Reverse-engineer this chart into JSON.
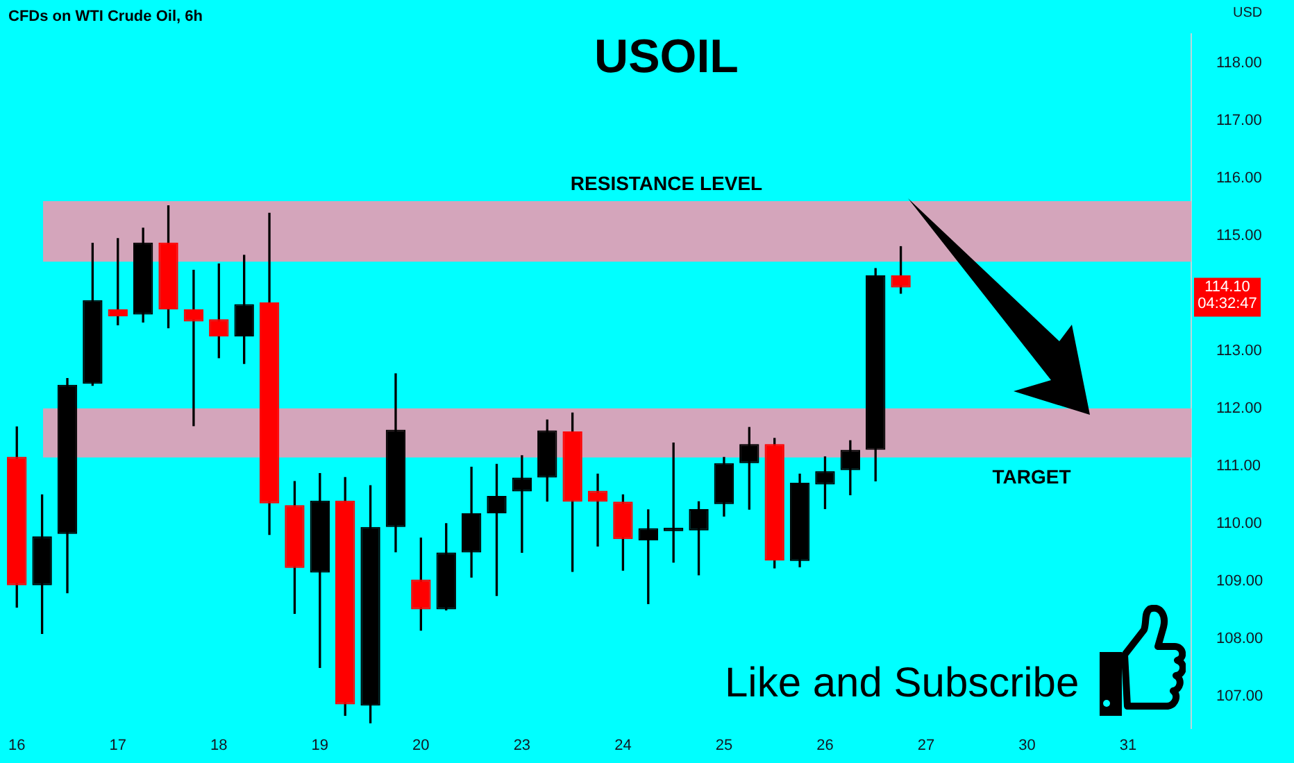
{
  "chart_data": {
    "type": "candlestick",
    "title": "USOIL",
    "subtitle": "CFDs on WTI Crude Oil, 6h",
    "ylabel": "USD",
    "categories": [
      "16",
      null,
      null,
      null,
      "17",
      null,
      null,
      null,
      "18",
      null,
      null,
      null,
      "19",
      null,
      null,
      null,
      "20",
      null,
      null,
      null,
      "23",
      null,
      null,
      null,
      "24",
      null,
      null,
      null,
      "25",
      null,
      null,
      null,
      "26",
      null,
      null,
      null,
      "27",
      null,
      null,
      null,
      "30",
      null,
      null,
      null,
      "31",
      null,
      null
    ],
    "ohlc": [
      [
        111.16,
        111.68,
        108.55,
        108.93
      ],
      [
        108.93,
        110.5,
        108.09,
        109.78
      ],
      [
        109.82,
        112.52,
        108.8,
        112.41
      ],
      [
        112.43,
        114.87,
        112.4,
        113.88
      ],
      [
        113.72,
        114.95,
        113.45,
        113.6
      ],
      [
        113.63,
        115.13,
        113.5,
        114.88
      ],
      [
        114.88,
        115.52,
        113.4,
        113.72
      ],
      [
        113.72,
        114.4,
        111.7,
        113.51
      ],
      [
        113.55,
        114.51,
        112.88,
        113.25
      ],
      [
        113.25,
        114.66,
        112.78,
        113.81
      ],
      [
        113.84,
        115.39,
        109.81,
        110.35
      ],
      [
        110.32,
        110.73,
        108.44,
        109.23
      ],
      [
        109.15,
        110.87,
        107.5,
        110.4
      ],
      [
        110.4,
        110.8,
        106.67,
        106.86
      ],
      [
        106.84,
        110.66,
        106.54,
        109.94
      ],
      [
        109.94,
        112.6,
        109.51,
        111.63
      ],
      [
        109.03,
        109.75,
        108.15,
        108.51
      ],
      [
        108.51,
        110.0,
        108.5,
        109.5
      ],
      [
        109.5,
        110.98,
        109.07,
        110.18
      ],
      [
        110.18,
        111.03,
        108.75,
        110.48
      ],
      [
        110.56,
        111.18,
        109.5,
        110.8
      ],
      [
        110.8,
        111.8,
        110.39,
        111.62
      ],
      [
        111.6,
        111.92,
        109.17,
        110.38
      ],
      [
        110.57,
        110.86,
        109.61,
        110.38
      ],
      [
        110.38,
        110.5,
        109.19,
        109.73
      ],
      [
        109.71,
        110.24,
        108.61,
        109.92
      ],
      [
        109.87,
        111.4,
        109.33,
        109.93
      ],
      [
        109.88,
        110.38,
        109.11,
        110.25
      ],
      [
        110.34,
        111.15,
        110.13,
        111.05
      ],
      [
        111.05,
        111.67,
        110.25,
        111.38
      ],
      [
        111.38,
        111.48,
        109.23,
        109.36
      ],
      [
        109.35,
        110.86,
        109.25,
        110.71
      ],
      [
        110.68,
        111.16,
        110.26,
        110.91
      ],
      [
        110.93,
        111.44,
        110.5,
        111.28
      ],
      [
        111.28,
        114.43,
        110.74,
        114.31
      ],
      [
        114.31,
        114.81,
        114.0,
        114.1
      ],
      null,
      null,
      null,
      null,
      null,
      null,
      null,
      null,
      null,
      null,
      null
    ],
    "colors": [
      "#ff0000",
      "#000000",
      "#000000",
      "#000000",
      "#ff0000",
      "#000000",
      "#ff0000",
      "#ff0000",
      "#ff0000",
      "#000000",
      "#ff0000",
      "#ff0000",
      "#000000",
      "#ff0000",
      "#000000",
      "#000000",
      "#ff0000",
      "#000000",
      "#000000",
      "#000000",
      "#000000",
      "#000000",
      "#ff0000",
      "#ff0000",
      "#ff0000",
      "#000000",
      "#000000",
      "#000000",
      "#000000",
      "#000000",
      "#ff0000",
      "#000000",
      "#000000",
      "#000000",
      "#000000",
      "#ff0000",
      null,
      null,
      null,
      null,
      null,
      null,
      null,
      null,
      null,
      null,
      null
    ],
    "ylim": [
      106.45,
      118.5
    ],
    "yticks": [
      {
        "value": 107,
        "label": "107.00"
      },
      {
        "value": 108,
        "label": "108.00"
      },
      {
        "value": 109,
        "label": "109.00"
      },
      {
        "value": 110,
        "label": "110.00"
      },
      {
        "value": 111,
        "label": "111.00"
      },
      {
        "value": 112,
        "label": "112.00"
      },
      {
        "value": 113,
        "label": "113.00"
      },
      {
        "value": 115,
        "label": "115.00"
      },
      {
        "value": 116,
        "label": "116.00"
      },
      {
        "value": 117,
        "label": "117.00"
      },
      {
        "value": 118,
        "label": "118.00"
      }
    ],
    "bands": [
      {
        "axis": "y",
        "from": 114.55,
        "to": 115.6,
        "label": "RESISTANCE LEVEL",
        "color": "#d4a5bb"
      },
      {
        "axis": "y",
        "from": 111.15,
        "to": 112.0,
        "label": "TARGET",
        "color": "#d4a5bb"
      }
    ],
    "annotations": [
      "114.10 04:32:47",
      "Like and Subscribe"
    ],
    "grid": false,
    "legend": false
  }
}
